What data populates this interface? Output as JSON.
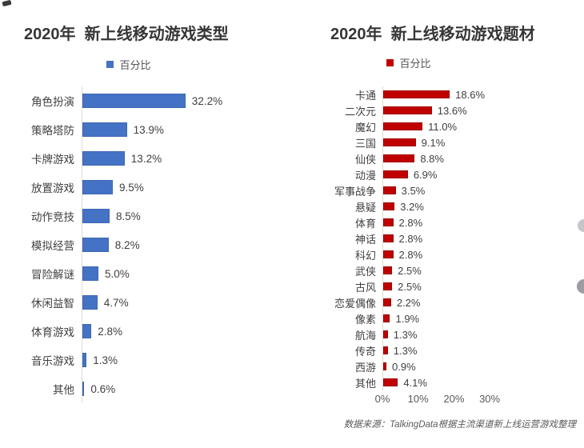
{
  "page": {
    "source_note": "数据来源：TalkingData根据主流渠道新上线运营游戏整理"
  },
  "chart_data": [
    {
      "type": "bar",
      "orientation": "horizontal",
      "title": "2020年  新上线移动游戏类型",
      "legend": "百分比",
      "legend_position": "top-center",
      "bar_color": "#4472C4",
      "value_suffix": "%",
      "grid": false,
      "xlim": [
        0,
        35
      ],
      "x_ticks": [],
      "categories": [
        "角色扮演",
        "策略塔防",
        "卡牌游戏",
        "放置游戏",
        "动作竞技",
        "模拟经营",
        "冒险解谜",
        "休闲益智",
        "体育游戏",
        "音乐游戏",
        "其他"
      ],
      "values": [
        32.2,
        13.9,
        13.2,
        9.5,
        8.5,
        8.2,
        5.0,
        4.7,
        2.8,
        1.3,
        0.6
      ]
    },
    {
      "type": "bar",
      "orientation": "horizontal",
      "title": "2020年  新上线移动游戏题材",
      "legend": "百分比",
      "legend_position": "top-center",
      "bar_color": "#C00000",
      "value_suffix": "%",
      "grid": false,
      "xlim": [
        0,
        30
      ],
      "x_ticks": [
        "0%",
        "10%",
        "20%",
        "30%"
      ],
      "categories": [
        "卡通",
        "二次元",
        "魔幻",
        "三国",
        "仙侠",
        "动漫",
        "军事战争",
        "悬疑",
        "体育",
        "神话",
        "科幻",
        "武侠",
        "古风",
        "恋爱偶像",
        "像素",
        "航海",
        "传奇",
        "西游",
        "其他"
      ],
      "values": [
        18.6,
        13.6,
        11.0,
        9.1,
        8.8,
        6.9,
        3.5,
        3.2,
        2.8,
        2.8,
        2.8,
        2.5,
        2.5,
        2.2,
        1.9,
        1.3,
        1.3,
        0.9,
        4.1
      ]
    }
  ]
}
